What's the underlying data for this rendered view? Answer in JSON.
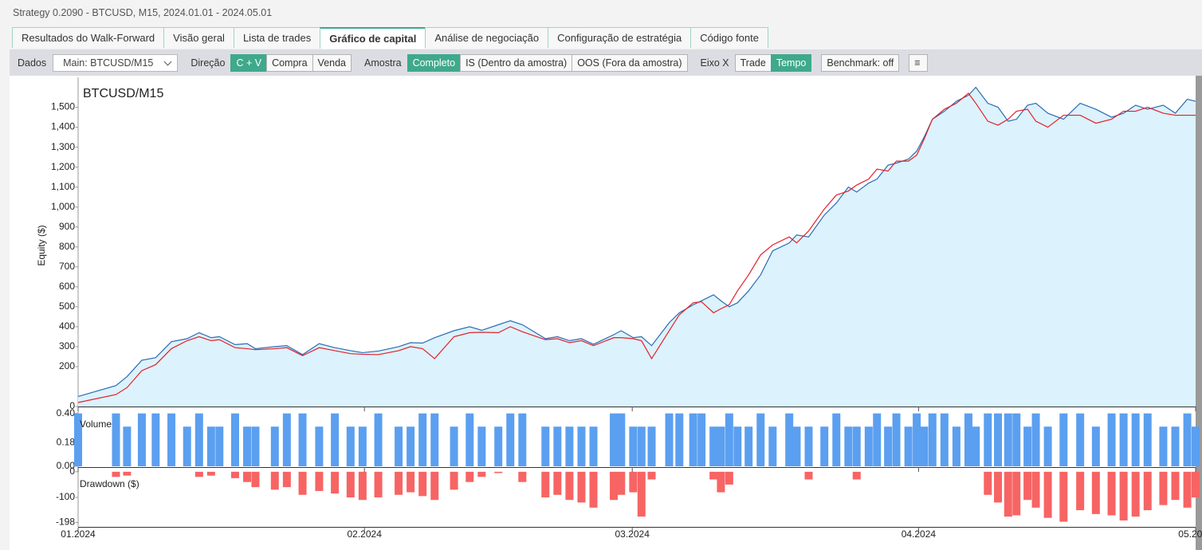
{
  "window_title": "Strategy 0.2090 - BTCUSD, M15, 2024.01.01 - 2024.05.01",
  "tabs": [
    {
      "label": "Resultados do Walk-Forward",
      "active": false
    },
    {
      "label": "Visão geral",
      "active": false
    },
    {
      "label": "Lista de trades",
      "active": false
    },
    {
      "label": "Gráfico de capital",
      "active": true
    },
    {
      "label": "Análise de negociação",
      "active": false
    },
    {
      "label": "Configuração de estratégia",
      "active": false
    },
    {
      "label": "Código fonte",
      "active": false
    }
  ],
  "toolbar": {
    "data_label": "Dados",
    "data_select": "Main: BTCUSD/M15",
    "direction_label": "Direção",
    "direction_buttons": [
      {
        "label": "C + V",
        "active": true
      },
      {
        "label": "Compra",
        "active": false
      },
      {
        "label": "Venda",
        "active": false
      }
    ],
    "sample_label": "Amostra",
    "sample_buttons": [
      {
        "label": "Completo",
        "active": true
      },
      {
        "label": "IS (Dentro da amostra)",
        "active": false
      },
      {
        "label": "OOS (Fora da amostra)",
        "active": false
      }
    ],
    "xaxis_label": "Eixo X",
    "xaxis_buttons": [
      {
        "label": "Trade",
        "active": false
      },
      {
        "label": "Tempo",
        "active": true
      }
    ],
    "benchmark": "Benchmark: off"
  },
  "chart_data": [
    {
      "type": "line",
      "title": "BTCUSD/M15",
      "y_label": "Equity ($)",
      "annotation": "2024",
      "fill": "#dcf2fc",
      "x": [
        0,
        4.1,
        5.3,
        6.9,
        8.4,
        10.1,
        11.8,
        13.1,
        14.4,
        15.3,
        17,
        18.3,
        19.2,
        21.3,
        22.6,
        24.3,
        26.1,
        27.8,
        29.5,
        30.8,
        32.5,
        34.7,
        36,
        37.3,
        38.6,
        40.7,
        42.4,
        43.7,
        45.5,
        46.8,
        48.1,
        50.6,
        51.9,
        53.2,
        54.5,
        55.8,
        58,
        58.8,
        60.1,
        61,
        62.1,
        64,
        65.1,
        66.6,
        67.5,
        68.8,
        69.6,
        70.5,
        71.4,
        72.6,
        73.9,
        75.2,
        77,
        77.8,
        79.1,
        80.8,
        82.1,
        83.4,
        84.3,
        85.6,
        86.5,
        87.7,
        88.6,
        89.9,
        90.8,
        91.6,
        92.5,
        93.8,
        95.1,
        96.4,
        97.2,
        98.5,
        99.6,
        100.7,
        101.6,
        102.8,
        103.7,
        105,
        106.7,
        108.5,
        110.2,
        111.9,
        113.2,
        114.5,
        115.8,
        117.5,
        118.8,
        120.1,
        121
      ],
      "xlim": [
        0,
        121
      ],
      "xticks": [
        {
          "value": 0,
          "label": "01.2024"
        },
        {
          "value": 31,
          "label": "02.2024"
        },
        {
          "value": 60,
          "label": "03.2024"
        },
        {
          "value": 91,
          "label": "04.2024"
        },
        {
          "value": 121,
          "label": "05.2024"
        }
      ],
      "ylim": [
        0,
        1650
      ],
      "yticks": [
        0,
        200,
        300,
        400,
        500,
        600,
        700,
        800,
        900,
        {
          "value": 1000,
          "label": "1,000"
        },
        {
          "value": 1100,
          "label": "1,100"
        },
        {
          "value": 1200,
          "label": "1,200"
        },
        {
          "value": 1300,
          "label": "1,300"
        },
        {
          "value": 1400,
          "label": "1,400"
        },
        {
          "value": 1500,
          "label": "1,500"
        }
      ],
      "series": [
        {
          "color": "#2b6cb3",
          "values": [
            50,
            105,
            150,
            232,
            245,
            325,
            340,
            370,
            345,
            350,
            310,
            315,
            290,
            300,
            305,
            260,
            315,
            295,
            280,
            270,
            278,
            300,
            320,
            318,
            345,
            380,
            400,
            382,
            410,
            430,
            410,
            340,
            350,
            330,
            340,
            312,
            360,
            380,
            345,
            350,
            305,
            420,
            470,
            510,
            530,
            560,
            530,
            500,
            520,
            580,
            660,
            780,
            820,
            860,
            850,
            960,
            1020,
            1100,
            1075,
            1120,
            1140,
            1210,
            1220,
            1240,
            1280,
            1350,
            1440,
            1480,
            1530,
            1560,
            1600,
            1520,
            1500,
            1430,
            1440,
            1510,
            1520,
            1470,
            1440,
            1520,
            1490,
            1450,
            1470,
            1510,
            1490,
            1510,
            1470,
            1540,
            1530
          ]
        },
        {
          "color": "#e3202c",
          "values": [
            20,
            60,
            95,
            180,
            210,
            290,
            330,
            350,
            330,
            335,
            295,
            290,
            285,
            290,
            295,
            255,
            295,
            280,
            265,
            262,
            260,
            280,
            300,
            290,
            240,
            350,
            370,
            372,
            370,
            400,
            375,
            335,
            340,
            320,
            330,
            305,
            345,
            345,
            340,
            330,
            240,
            380,
            460,
            520,
            525,
            470,
            490,
            510,
            580,
            660,
            760,
            810,
            850,
            820,
            880,
            990,
            1060,
            1080,
            1110,
            1140,
            1190,
            1180,
            1230,
            1230,
            1260,
            1340,
            1440,
            1490,
            1520,
            1570,
            1520,
            1430,
            1410,
            1440,
            1480,
            1490,
            1430,
            1400,
            1460,
            1460,
            1420,
            1440,
            1480,
            1480,
            1500,
            1470,
            1460,
            1460,
            1460
          ]
        }
      ]
    },
    {
      "type": "bar",
      "label": "Volume",
      "color": "#5b9ff0",
      "ylim": [
        0,
        0.44
      ],
      "yticks": [
        {
          "value": 0,
          "label": "0.00"
        },
        0.18,
        {
          "value": 0.4,
          "label": "0.40"
        }
      ],
      "values": [
        0.4,
        0.4,
        0.3,
        0.4,
        0.4,
        0.4,
        0.3,
        0.4,
        0.3,
        0.3,
        0.4,
        0.3,
        0.3,
        0.3,
        0.4,
        0.4,
        0.3,
        0.4,
        0.3,
        0.3,
        0.4,
        0.3,
        0.3,
        0.4,
        0.4,
        0.3,
        0.4,
        0.3,
        0.3,
        0.4,
        0.4,
        0.3,
        0.3,
        0.3,
        0.3,
        0.3,
        0.4,
        0.4,
        0.3,
        0.3,
        0.3,
        0.4,
        0.4,
        0.4,
        0.4,
        0.3,
        0.3,
        0.4,
        0.3,
        0.3,
        0.4,
        0.3,
        0.4,
        0.3,
        0.3,
        0.3,
        0.4,
        0.3,
        0.3,
        0.3,
        0.4,
        0.3,
        0.4,
        0.3,
        0.4,
        0.3,
        0.4,
        0.4,
        0.3,
        0.4,
        0.3,
        0.4,
        0.4,
        0.4,
        0.4,
        0.3,
        0.4,
        0.3,
        0.4,
        0.4,
        0.3,
        0.4,
        0.4,
        0.4,
        0.4,
        0.3,
        0.3,
        0.4,
        0.3
      ]
    },
    {
      "type": "bar",
      "label": "Drawdown ($)",
      "color": "#f76464",
      "ylim": [
        -212,
        12
      ],
      "yticks": [
        0,
        -100,
        -198
      ],
      "values": [
        0,
        -20,
        -15,
        0,
        0,
        0,
        0,
        -20,
        -15,
        0,
        -25,
        -40,
        -60,
        -70,
        -60,
        -90,
        -75,
        -85,
        -100,
        -110,
        -100,
        -90,
        -80,
        -95,
        -110,
        -70,
        -40,
        -20,
        -5,
        0,
        -40,
        -100,
        -90,
        -110,
        -120,
        -140,
        -110,
        -90,
        -80,
        -175,
        -30,
        0,
        0,
        0,
        0,
        -30,
        -80,
        -50,
        0,
        0,
        0,
        0,
        0,
        0,
        -30,
        0,
        0,
        0,
        -30,
        0,
        0,
        0,
        0,
        0,
        0,
        0,
        0,
        0,
        0,
        0,
        0,
        -90,
        -120,
        -175,
        -170,
        -110,
        -140,
        -180,
        -195,
        -150,
        -165,
        -170,
        -190,
        -175,
        -150,
        -130,
        -110,
        -140,
        -100
      ]
    }
  ]
}
